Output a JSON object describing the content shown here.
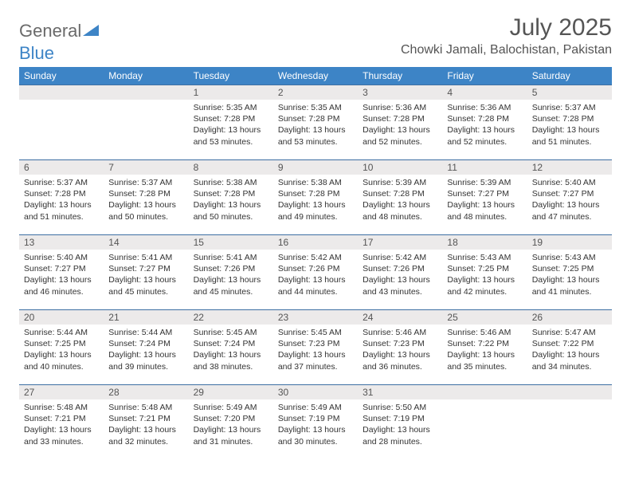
{
  "logo": {
    "part1": "General",
    "part2": "Blue"
  },
  "title": "July 2025",
  "location": "Chowki Jamali, Balochistan, Pakistan",
  "headers": [
    "Sunday",
    "Monday",
    "Tuesday",
    "Wednesday",
    "Thursday",
    "Friday",
    "Saturday"
  ],
  "colors": {
    "header_bg": "#3d84c6",
    "header_text": "#ffffff",
    "daynum_bg": "#eceaea",
    "daynum_border": "#3d6fa3",
    "logo_gray": "#6a6a6a",
    "logo_blue": "#3d84c6",
    "text": "#333333"
  },
  "weeks": [
    [
      {
        "n": "",
        "lines": []
      },
      {
        "n": "",
        "lines": []
      },
      {
        "n": "1",
        "lines": [
          "Sunrise: 5:35 AM",
          "Sunset: 7:28 PM",
          "Daylight: 13 hours and 53 minutes."
        ]
      },
      {
        "n": "2",
        "lines": [
          "Sunrise: 5:35 AM",
          "Sunset: 7:28 PM",
          "Daylight: 13 hours and 53 minutes."
        ]
      },
      {
        "n": "3",
        "lines": [
          "Sunrise: 5:36 AM",
          "Sunset: 7:28 PM",
          "Daylight: 13 hours and 52 minutes."
        ]
      },
      {
        "n": "4",
        "lines": [
          "Sunrise: 5:36 AM",
          "Sunset: 7:28 PM",
          "Daylight: 13 hours and 52 minutes."
        ]
      },
      {
        "n": "5",
        "lines": [
          "Sunrise: 5:37 AM",
          "Sunset: 7:28 PM",
          "Daylight: 13 hours and 51 minutes."
        ]
      }
    ],
    [
      {
        "n": "6",
        "lines": [
          "Sunrise: 5:37 AM",
          "Sunset: 7:28 PM",
          "Daylight: 13 hours and 51 minutes."
        ]
      },
      {
        "n": "7",
        "lines": [
          "Sunrise: 5:37 AM",
          "Sunset: 7:28 PM",
          "Daylight: 13 hours and 50 minutes."
        ]
      },
      {
        "n": "8",
        "lines": [
          "Sunrise: 5:38 AM",
          "Sunset: 7:28 PM",
          "Daylight: 13 hours and 50 minutes."
        ]
      },
      {
        "n": "9",
        "lines": [
          "Sunrise: 5:38 AM",
          "Sunset: 7:28 PM",
          "Daylight: 13 hours and 49 minutes."
        ]
      },
      {
        "n": "10",
        "lines": [
          "Sunrise: 5:39 AM",
          "Sunset: 7:28 PM",
          "Daylight: 13 hours and 48 minutes."
        ]
      },
      {
        "n": "11",
        "lines": [
          "Sunrise: 5:39 AM",
          "Sunset: 7:27 PM",
          "Daylight: 13 hours and 48 minutes."
        ]
      },
      {
        "n": "12",
        "lines": [
          "Sunrise: 5:40 AM",
          "Sunset: 7:27 PM",
          "Daylight: 13 hours and 47 minutes."
        ]
      }
    ],
    [
      {
        "n": "13",
        "lines": [
          "Sunrise: 5:40 AM",
          "Sunset: 7:27 PM",
          "Daylight: 13 hours and 46 minutes."
        ]
      },
      {
        "n": "14",
        "lines": [
          "Sunrise: 5:41 AM",
          "Sunset: 7:27 PM",
          "Daylight: 13 hours and 45 minutes."
        ]
      },
      {
        "n": "15",
        "lines": [
          "Sunrise: 5:41 AM",
          "Sunset: 7:26 PM",
          "Daylight: 13 hours and 45 minutes."
        ]
      },
      {
        "n": "16",
        "lines": [
          "Sunrise: 5:42 AM",
          "Sunset: 7:26 PM",
          "Daylight: 13 hours and 44 minutes."
        ]
      },
      {
        "n": "17",
        "lines": [
          "Sunrise: 5:42 AM",
          "Sunset: 7:26 PM",
          "Daylight: 13 hours and 43 minutes."
        ]
      },
      {
        "n": "18",
        "lines": [
          "Sunrise: 5:43 AM",
          "Sunset: 7:25 PM",
          "Daylight: 13 hours and 42 minutes."
        ]
      },
      {
        "n": "19",
        "lines": [
          "Sunrise: 5:43 AM",
          "Sunset: 7:25 PM",
          "Daylight: 13 hours and 41 minutes."
        ]
      }
    ],
    [
      {
        "n": "20",
        "lines": [
          "Sunrise: 5:44 AM",
          "Sunset: 7:25 PM",
          "Daylight: 13 hours and 40 minutes."
        ]
      },
      {
        "n": "21",
        "lines": [
          "Sunrise: 5:44 AM",
          "Sunset: 7:24 PM",
          "Daylight: 13 hours and 39 minutes."
        ]
      },
      {
        "n": "22",
        "lines": [
          "Sunrise: 5:45 AM",
          "Sunset: 7:24 PM",
          "Daylight: 13 hours and 38 minutes."
        ]
      },
      {
        "n": "23",
        "lines": [
          "Sunrise: 5:45 AM",
          "Sunset: 7:23 PM",
          "Daylight: 13 hours and 37 minutes."
        ]
      },
      {
        "n": "24",
        "lines": [
          "Sunrise: 5:46 AM",
          "Sunset: 7:23 PM",
          "Daylight: 13 hours and 36 minutes."
        ]
      },
      {
        "n": "25",
        "lines": [
          "Sunrise: 5:46 AM",
          "Sunset: 7:22 PM",
          "Daylight: 13 hours and 35 minutes."
        ]
      },
      {
        "n": "26",
        "lines": [
          "Sunrise: 5:47 AM",
          "Sunset: 7:22 PM",
          "Daylight: 13 hours and 34 minutes."
        ]
      }
    ],
    [
      {
        "n": "27",
        "lines": [
          "Sunrise: 5:48 AM",
          "Sunset: 7:21 PM",
          "Daylight: 13 hours and 33 minutes."
        ]
      },
      {
        "n": "28",
        "lines": [
          "Sunrise: 5:48 AM",
          "Sunset: 7:21 PM",
          "Daylight: 13 hours and 32 minutes."
        ]
      },
      {
        "n": "29",
        "lines": [
          "Sunrise: 5:49 AM",
          "Sunset: 7:20 PM",
          "Daylight: 13 hours and 31 minutes."
        ]
      },
      {
        "n": "30",
        "lines": [
          "Sunrise: 5:49 AM",
          "Sunset: 7:19 PM",
          "Daylight: 13 hours and 30 minutes."
        ]
      },
      {
        "n": "31",
        "lines": [
          "Sunrise: 5:50 AM",
          "Sunset: 7:19 PM",
          "Daylight: 13 hours and 28 minutes."
        ]
      },
      {
        "n": "",
        "lines": []
      },
      {
        "n": "",
        "lines": []
      }
    ]
  ]
}
